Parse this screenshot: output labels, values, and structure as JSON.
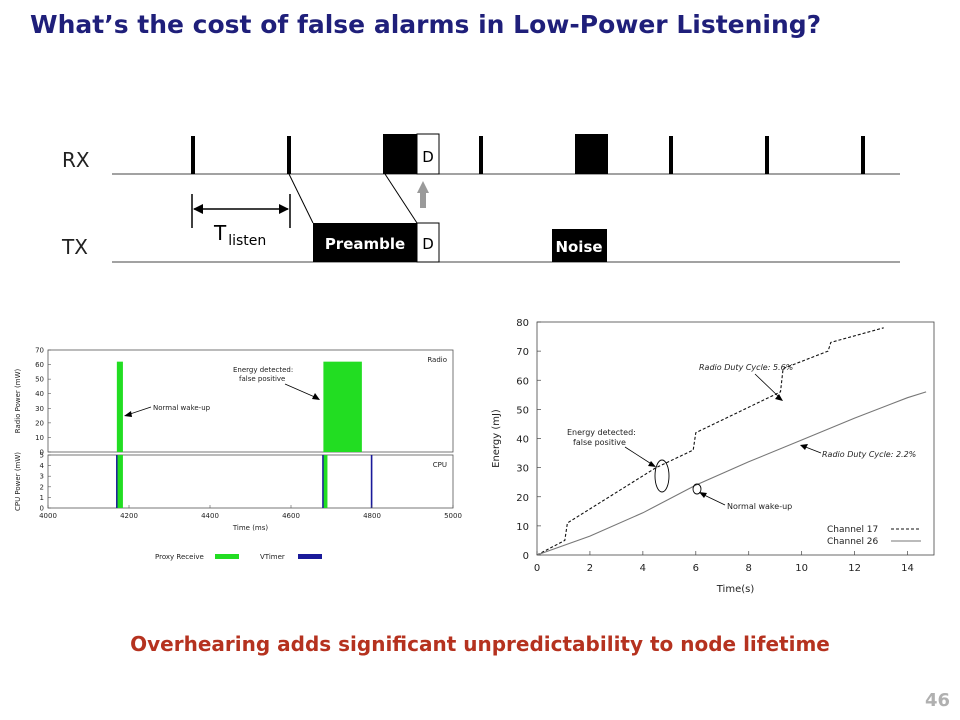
{
  "slide": {
    "title": "What’s the cost of false alarms in Low-Power Listening?",
    "subtitle": "Overhearing adds significant unpredictability to node lifetime",
    "page_number": "46"
  },
  "timing_diagram": {
    "rx_label": "RX",
    "tx_label": "TX",
    "t_main": "T",
    "t_sub": "listen",
    "preamble_label": "Preamble",
    "data_label": "D",
    "noise_label": "Noise"
  },
  "chart_data": [
    {
      "type": "bar",
      "panels": [
        {
          "name": "Radio",
          "ylabel": "Radio Power (mW)",
          "ylim": [
            0,
            70
          ],
          "yticks": [
            "0",
            "10",
            "20",
            "30",
            "40",
            "50",
            "60",
            "70"
          ],
          "series": [
            {
              "name": "Proxy Receive",
              "color": "#22dd22",
              "intervals": [
                [
                  4170,
                  4185,
                  62
                ],
                [
                  4680,
                  4775,
                  62
                ]
              ]
            }
          ]
        },
        {
          "name": "CPU",
          "ylabel": "CPU Power (mW)",
          "ylim": [
            0,
            5
          ],
          "yticks": [
            "0",
            "1",
            "2",
            "3",
            "4",
            "5"
          ],
          "series": [
            {
              "name": "Proxy Receive",
              "color": "#22dd22",
              "intervals": [
                [
                  4170,
                  4185,
                  5
                ],
                [
                  4680,
                  4690,
                  5
                ]
              ]
            },
            {
              "name": "VTimer",
              "color": "#1a1a9a",
              "intervals": [
                [
                  4168,
                  4171,
                  5
                ],
                [
                  4677,
                  4680,
                  5
                ],
                [
                  4797,
                  4801,
                  5
                ]
              ]
            }
          ]
        }
      ],
      "xlabel": "Time (ms)",
      "xlim": [
        4000,
        5000
      ],
      "xticks": [
        "4000",
        "4200",
        "4400",
        "4600",
        "4800",
        "5000"
      ],
      "annotations": [
        "Normal wake-up",
        "Energy detected:",
        "false positive"
      ],
      "legend": [
        "Proxy Receive",
        "VTimer"
      ],
      "legend_position": "bottom"
    },
    {
      "type": "line",
      "xlabel": "Time(s)",
      "ylabel": "Energy (mJ)",
      "xlim": [
        0,
        15
      ],
      "ylim": [
        0,
        80
      ],
      "xticks": [
        "0",
        "2",
        "4",
        "6",
        "8",
        "10",
        "12",
        "14"
      ],
      "yticks": [
        "0",
        "10",
        "20",
        "30",
        "40",
        "50",
        "60",
        "70",
        "80"
      ],
      "series": [
        {
          "name": "Channel 17",
          "style": "dashed",
          "x": [
            0,
            1.05,
            1.15,
            4.5,
            5.9,
            6.0,
            9.2,
            9.3,
            11.0,
            11.1,
            13.1
          ],
          "y": [
            0,
            5,
            11,
            30,
            36,
            42,
            56,
            64,
            70,
            73,
            78
          ]
        },
        {
          "name": "Channel 26",
          "style": "solid",
          "x": [
            0,
            2,
            4,
            6,
            8,
            10,
            12,
            14,
            14.7
          ],
          "y": [
            0,
            6.5,
            14.5,
            24,
            32,
            39.5,
            47,
            54,
            56
          ]
        }
      ],
      "annotations": [
        "Radio Duty Cycle: 5.6%",
        "Radio Duty Cycle: 2.2%",
        "Energy detected:",
        "false positive",
        "Normal wake-up"
      ],
      "legend_position": "bottom-right"
    }
  ]
}
